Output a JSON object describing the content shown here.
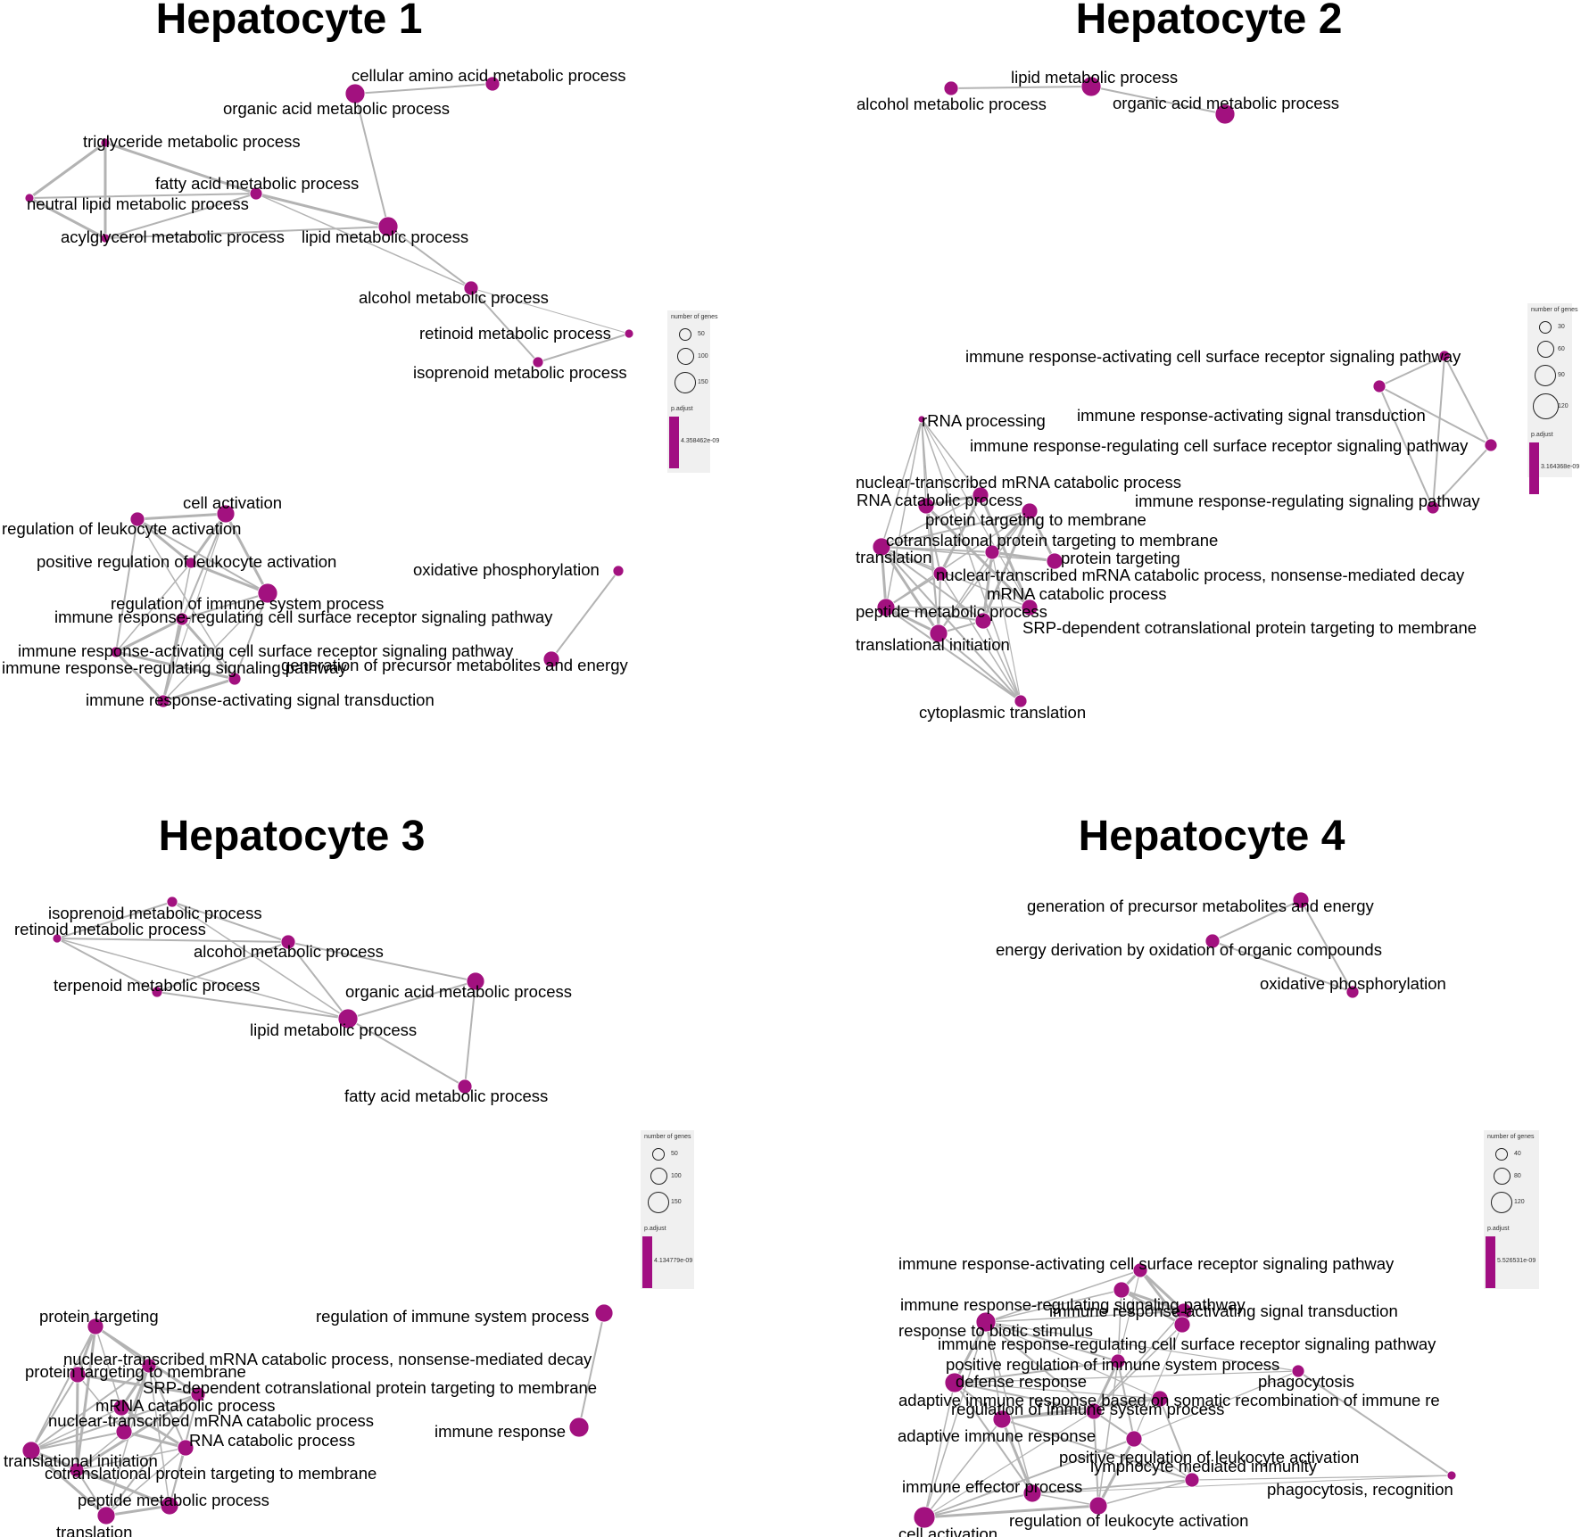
{
  "colors": {
    "node": "#a2117f",
    "edge": "#b3b3b3",
    "legend_bg": "#f0f0f0",
    "bar": "#a10e82"
  },
  "panels": [
    {
      "title": "Hepatocyte 1",
      "legend": {
        "size_title": "number of genes",
        "sizes": [
          "50",
          "100",
          "150"
        ],
        "color_title": "p.adjust",
        "color_value": "4.358462e-09"
      },
      "nodes": [
        {
          "id": "a1",
          "label": "cellular amino acid metabolic process",
          "size": 8
        },
        {
          "id": "a2",
          "label": "organic acid metabolic process",
          "size": 11
        },
        {
          "id": "a3",
          "label": "triglyceride metabolic process",
          "size": 5
        },
        {
          "id": "a4",
          "label": "fatty acid metabolic process",
          "size": 7
        },
        {
          "id": "a5",
          "label": "neutral lipid metabolic process",
          "size": 5
        },
        {
          "id": "a6",
          "label": "acylglycerol metabolic process",
          "size": 5
        },
        {
          "id": "a7",
          "label": "lipid metabolic process",
          "size": 11
        },
        {
          "id": "a8",
          "label": "alcohol metabolic process",
          "size": 8
        },
        {
          "id": "a9",
          "label": "retinoid metabolic process",
          "size": 5
        },
        {
          "id": "a10",
          "label": "isoprenoid metabolic process",
          "size": 6
        },
        {
          "id": "b1",
          "label": "cell activation",
          "size": 10
        },
        {
          "id": "b2",
          "label": "regulation of leukocyte activation",
          "size": 8
        },
        {
          "id": "b3",
          "label": "positive regulation of leukocyte activation",
          "size": 6
        },
        {
          "id": "b4",
          "label": "regulation of immune system process",
          "size": 11
        },
        {
          "id": "b5",
          "label": "immune response-regulating cell surface receptor signaling pathway",
          "size": 7
        },
        {
          "id": "b6",
          "label": "immune response-activating cell surface receptor signaling pathway",
          "size": 6
        },
        {
          "id": "b7",
          "label": "immune response-regulating signaling pathway",
          "size": 7
        },
        {
          "id": "b8",
          "label": "immune response-activating signal transduction",
          "size": 7
        },
        {
          "id": "b9",
          "label": "oxidative phosphorylation",
          "size": 6
        },
        {
          "id": "b10",
          "label": "generation of precursor metabolites and energy",
          "size": 9
        }
      ]
    },
    {
      "title": "Hepatocyte 2",
      "legend": {
        "size_title": "number of genes",
        "sizes": [
          "30",
          "60",
          "90",
          "120"
        ],
        "color_title": "p.adjust",
        "color_value": "3.164368e-09"
      },
      "nodes": [
        {
          "id": "c1",
          "label": "alcohol metabolic process",
          "size": 8
        },
        {
          "id": "c2",
          "label": "lipid metabolic process",
          "size": 11
        },
        {
          "id": "c3",
          "label": "organic acid metabolic process",
          "size": 11
        },
        {
          "id": "d1",
          "label": "immune response-activating cell surface receptor signaling pathway",
          "size": 6
        },
        {
          "id": "d2",
          "label": "immune response-activating signal transduction",
          "size": 7
        },
        {
          "id": "d3",
          "label": "immune response-regulating cell surface receptor signaling pathway",
          "size": 7
        },
        {
          "id": "d4",
          "label": "immune response-regulating signaling pathway",
          "size": 7
        },
        {
          "id": "e1",
          "label": "rRNA processing",
          "size": 4
        },
        {
          "id": "e2",
          "label": "nuclear-transcribed mRNA catabolic process",
          "size": 9
        },
        {
          "id": "e3",
          "label": "RNA catabolic process",
          "size": 9
        },
        {
          "id": "e4",
          "label": "protein targeting to membrane",
          "size": 9
        },
        {
          "id": "e5",
          "label": "cotranslational protein targeting to membrane",
          "size": 8
        },
        {
          "id": "e6",
          "label": "translation",
          "size": 10
        },
        {
          "id": "e7",
          "label": "protein targeting",
          "size": 9
        },
        {
          "id": "e8",
          "label": "nuclear-transcribed mRNA catabolic process, nonsense-mediated decay",
          "size": 8
        },
        {
          "id": "e9",
          "label": "mRNA catabolic process",
          "size": 9
        },
        {
          "id": "e10",
          "label": "peptide metabolic process",
          "size": 10
        },
        {
          "id": "e11",
          "label": "SRP-dependent cotranslational protein targeting to membrane",
          "size": 9
        },
        {
          "id": "e12",
          "label": "translational initiation",
          "size": 10
        },
        {
          "id": "e13",
          "label": "cytoplasmic translation",
          "size": 7
        }
      ]
    },
    {
      "title": "Hepatocyte 3",
      "legend": {
        "size_title": "number of genes",
        "sizes": [
          "50",
          "100",
          "150"
        ],
        "color_title": "p.adjust",
        "color_value": "4.134779e-09"
      },
      "nodes": [
        {
          "id": "f1",
          "label": "isoprenoid metabolic process",
          "size": 6
        },
        {
          "id": "f2",
          "label": "retinoid metabolic process",
          "size": 5
        },
        {
          "id": "f3",
          "label": "alcohol metabolic process",
          "size": 8
        },
        {
          "id": "f4",
          "label": "terpenoid metabolic process",
          "size": 6
        },
        {
          "id": "f5",
          "label": "organic acid metabolic process",
          "size": 10
        },
        {
          "id": "f6",
          "label": "lipid metabolic process",
          "size": 11
        },
        {
          "id": "f7",
          "label": "fatty acid metabolic process",
          "size": 8
        },
        {
          "id": "g1",
          "label": "protein targeting",
          "size": 9
        },
        {
          "id": "g2",
          "label": "nuclear-transcribed mRNA catabolic process, nonsense-mediated decay",
          "size": 8
        },
        {
          "id": "g3",
          "label": "protein targeting to membrane",
          "size": 9
        },
        {
          "id": "g4",
          "label": "SRP-dependent cotranslational protein targeting to membrane",
          "size": 8
        },
        {
          "id": "g5",
          "label": "mRNA catabolic process",
          "size": 9
        },
        {
          "id": "g6",
          "label": "nuclear-transcribed mRNA catabolic process",
          "size": 9
        },
        {
          "id": "g7",
          "label": "RNA catabolic process",
          "size": 9
        },
        {
          "id": "g8",
          "label": "translational initiation",
          "size": 10
        },
        {
          "id": "g9",
          "label": "cotranslational protein targeting to membrane",
          "size": 8
        },
        {
          "id": "g10",
          "label": "peptide metabolic process",
          "size": 10
        },
        {
          "id": "g11",
          "label": "translation",
          "size": 10
        },
        {
          "id": "h1",
          "label": "regulation of immune system process",
          "size": 10
        },
        {
          "id": "h2",
          "label": "immune response",
          "size": 11
        }
      ]
    },
    {
      "title": "Hepatocyte 4",
      "legend": {
        "size_title": "number of genes",
        "sizes": [
          "40",
          "80",
          "120"
        ],
        "color_title": "p.adjust",
        "color_value": "5.526531e-09"
      },
      "nodes": [
        {
          "id": "i1",
          "label": "generation of precursor metabolites and energy",
          "size": 9
        },
        {
          "id": "i2",
          "label": "energy derivation by oxidation of organic compounds",
          "size": 8
        },
        {
          "id": "i3",
          "label": "oxidative phosphorylation",
          "size": 7
        },
        {
          "id": "j1",
          "label": "immune response-activating cell surface receptor signaling pathway",
          "size": 8
        },
        {
          "id": "j2",
          "label": "immune response-regulating signaling pathway",
          "size": 9
        },
        {
          "id": "j3",
          "label": "immune response-activating signal transduction",
          "size": 9
        },
        {
          "id": "j4",
          "label": "response to biotic stimulus",
          "size": 11
        },
        {
          "id": "j5",
          "label": "immune response-regulating cell surface receptor signaling pathway",
          "size": 9
        },
        {
          "id": "j6",
          "label": "positive regulation of immune system process",
          "size": 8
        },
        {
          "id": "j7",
          "label": "defense response",
          "size": 11
        },
        {
          "id": "j8",
          "label": "phagocytosis",
          "size": 7
        },
        {
          "id": "j9",
          "label": "adaptive immune response based on somatic recombination of immune re",
          "size": 9
        },
        {
          "id": "j10",
          "label": "regulation of immune system process",
          "size": 9
        },
        {
          "id": "j11",
          "label": "adaptive immune response",
          "size": 10
        },
        {
          "id": "j12",
          "label": "positive regulation of leukocyte activation",
          "size": 9
        },
        {
          "id": "j13",
          "label": "lymphocyte mediated immunity",
          "size": 8
        },
        {
          "id": "j14",
          "label": "immune effector process",
          "size": 10
        },
        {
          "id": "j15",
          "label": "phagocytosis, recognition",
          "size": 5
        },
        {
          "id": "j16",
          "label": "regulation of leukocyte activation",
          "size": 10
        },
        {
          "id": "j17",
          "label": "cell activation",
          "size": 12
        }
      ]
    }
  ]
}
